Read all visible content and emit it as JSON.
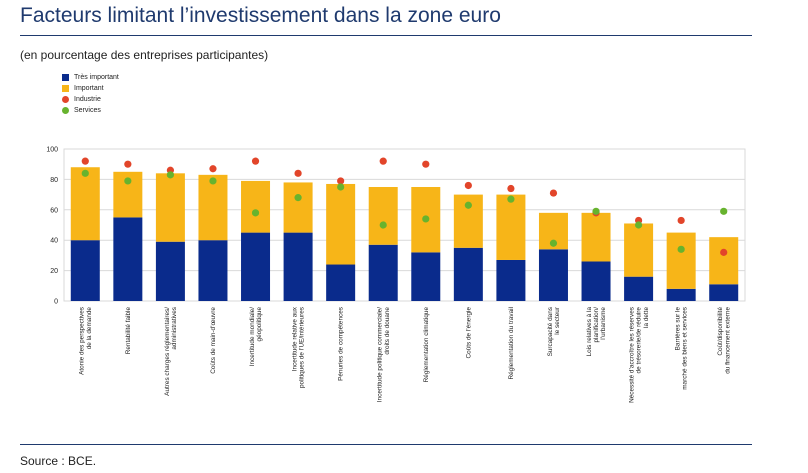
{
  "header": {
    "title": "Facteurs limitant l’investissement dans la zone euro",
    "subtitle": "(en pourcentage des entreprises participantes)",
    "source": "Source : BCE."
  },
  "legend": {
    "items": [
      {
        "label": "Très important",
        "color": "#0a2b8c",
        "shape": "square"
      },
      {
        "label": "Important",
        "color": "#f7b518",
        "shape": "square"
      },
      {
        "label": "Industrie",
        "color": "#e2452a",
        "shape": "circle"
      },
      {
        "label": "Services",
        "color": "#67b32e",
        "shape": "circle"
      }
    ]
  },
  "chart_data": {
    "type": "bar",
    "stacked": true,
    "ylim": [
      0,
      100
    ],
    "yticks": [
      0,
      20,
      40,
      60,
      80,
      100
    ],
    "grid": true,
    "legend_position": "top-left",
    "categories": [
      [
        "Atonie des perspectives",
        "de la demande"
      ],
      [
        "Rentabilité faible"
      ],
      [
        "Autres charges réglementaires/",
        "administratives"
      ],
      [
        "Coûts de main-d’œuvre"
      ],
      [
        "Incertitude mondiale/",
        "géopolitique"
      ],
      [
        "Incertitude relative aux",
        "politiques de l’UE/intérieures"
      ],
      [
        "Pénuries de compétences"
      ],
      [
        "Incertitude politique commerciale/",
        "droits de douane"
      ],
      [
        "Réglementation climatique"
      ],
      [
        "Coûts de l’énergie"
      ],
      [
        "Réglementation du travail"
      ],
      [
        "Surcapacité dans",
        "le secteur"
      ],
      [
        "Lois relatives à la",
        "planification/",
        "l’urbanisme"
      ],
      [
        "Nécessité d’accroître les réserves",
        "de trésorerie/de réduire",
        "la dette"
      ],
      [
        "Barrières sur le",
        "marché des biens et services"
      ],
      [
        "Coût/disponibilité",
        "du financement externe"
      ]
    ],
    "series": [
      {
        "name": "Très important",
        "kind": "bar",
        "color": "#0a2b8c",
        "values": [
          40,
          55,
          39,
          40,
          45,
          45,
          24,
          37,
          32,
          35,
          27,
          34,
          26,
          16,
          8,
          11
        ]
      },
      {
        "name": "Important",
        "kind": "bar",
        "color": "#f7b518",
        "values": [
          48,
          30,
          45,
          43,
          34,
          33,
          53,
          38,
          43,
          35,
          43,
          24,
          32,
          35,
          37,
          31
        ]
      },
      {
        "name": "Industrie",
        "kind": "dot",
        "color": "#e2452a",
        "values": [
          92,
          90,
          86,
          87,
          92,
          84,
          79,
          92,
          90,
          76,
          74,
          71,
          58,
          53,
          53,
          32
        ]
      },
      {
        "name": "Services",
        "kind": "dot",
        "color": "#67b32e",
        "values": [
          84,
          79,
          83,
          79,
          58,
          68,
          75,
          50,
          54,
          63,
          67,
          38,
          59,
          50,
          34,
          59
        ]
      }
    ]
  }
}
